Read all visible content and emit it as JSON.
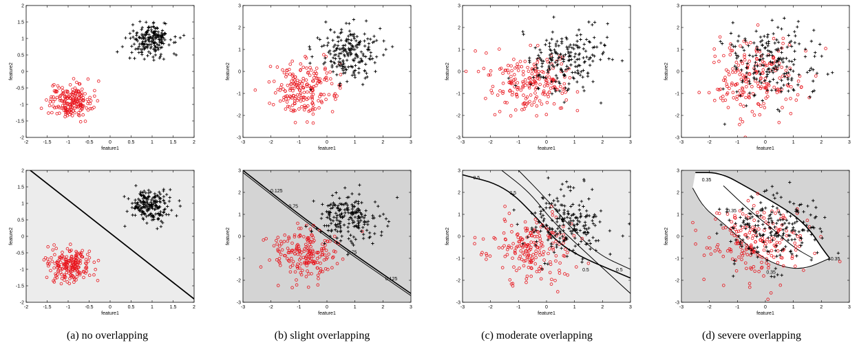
{
  "captions": [
    "(a) no overlapping",
    "(b) slight overlapping",
    "(c) moderate overlapping",
    "(d) severe overlapping"
  ],
  "colors": {
    "class1": "#e8141c",
    "class2": "#000000",
    "bg_light": "#ececec",
    "bg_dark": "#d4d4d4",
    "region_white": "#ffffff"
  },
  "chart_data": [
    {
      "type": "scatter",
      "panel": "a-top",
      "xlabel": "feature1",
      "ylabel": "feature2",
      "xlim": [
        -2,
        2
      ],
      "ylim": [
        -2,
        2
      ],
      "xticks": [
        -2,
        -1.5,
        -1,
        -0.5,
        0,
        0.5,
        1,
        1.5,
        2
      ],
      "yticks": [
        -2,
        -1.5,
        -1,
        -0.5,
        0,
        0.5,
        1,
        1.5,
        2
      ],
      "series": [
        {
          "marker": "circle",
          "color": "#e8141c",
          "n": 200,
          "center": [
            -0.95,
            -0.9
          ],
          "spread": [
            0.25,
            0.25
          ]
        },
        {
          "marker": "plus",
          "color": "#000000",
          "n": 200,
          "center": [
            0.95,
            0.95
          ],
          "spread": [
            0.25,
            0.25
          ]
        }
      ]
    },
    {
      "type": "scatter",
      "panel": "b-top",
      "xlabel": "feature1",
      "ylabel": "feature2",
      "xlim": [
        -3,
        3
      ],
      "ylim": [
        -3,
        3
      ],
      "xticks": [
        -3,
        -2,
        -1,
        0,
        1,
        2,
        3
      ],
      "yticks": [
        -3,
        -2,
        -1,
        0,
        1,
        2,
        3
      ],
      "series": [
        {
          "marker": "circle",
          "color": "#e8141c",
          "n": 200,
          "center": [
            -0.8,
            -0.8
          ],
          "spread": [
            0.6,
            0.6
          ]
        },
        {
          "marker": "plus",
          "color": "#000000",
          "n": 200,
          "center": [
            0.8,
            0.8
          ],
          "spread": [
            0.55,
            0.6
          ]
        }
      ]
    },
    {
      "type": "scatter",
      "panel": "c-top",
      "xlabel": "feature1",
      "ylabel": "feature2",
      "xlim": [
        -3,
        3
      ],
      "ylim": [
        -3,
        3
      ],
      "xticks": [
        -3,
        -2,
        -1,
        0,
        1,
        2,
        3
      ],
      "yticks": [
        -3,
        -2,
        -1,
        0,
        1,
        2,
        3
      ],
      "series": [
        {
          "marker": "circle",
          "color": "#e8141c",
          "n": 200,
          "center": [
            -0.6,
            -0.5
          ],
          "spread": [
            0.75,
            0.7
          ]
        },
        {
          "marker": "plus",
          "color": "#000000",
          "n": 200,
          "center": [
            0.6,
            0.5
          ],
          "spread": [
            0.7,
            0.75
          ]
        }
      ]
    },
    {
      "type": "scatter",
      "panel": "d-top",
      "xlabel": "feature1",
      "ylabel": "feature2",
      "xlim": [
        -3,
        3
      ],
      "ylim": [
        -3,
        3
      ],
      "xticks": [
        -3,
        -2,
        -1,
        0,
        1,
        2,
        3
      ],
      "yticks": [
        -3,
        -2,
        -1,
        0,
        1,
        2,
        3
      ],
      "series": [
        {
          "marker": "circle",
          "color": "#e8141c",
          "n": 200,
          "center": [
            -0.4,
            -0.3
          ],
          "spread": [
            0.85,
            0.85
          ]
        },
        {
          "marker": "plus",
          "color": "#000000",
          "n": 200,
          "center": [
            0.35,
            0.3
          ],
          "spread": [
            0.85,
            0.85
          ]
        }
      ]
    },
    {
      "type": "scatter",
      "panel": "a-bottom",
      "xlabel": "feature1",
      "ylabel": "feature2",
      "xlim": [
        -2,
        2
      ],
      "ylim": [
        -2,
        2
      ],
      "xticks": [
        -2,
        -1.5,
        -1,
        -0.5,
        0,
        0.5,
        1,
        1.5,
        2
      ],
      "yticks": [
        -2,
        -1.5,
        -1,
        -0.5,
        0,
        0.5,
        1,
        1.5,
        2
      ],
      "background": "#ececec",
      "boundary": [
        [
          -2,
          2.1
        ],
        [
          2,
          -1.9
        ]
      ],
      "series": [
        {
          "marker": "circle",
          "color": "#e8141c",
          "n": 200,
          "center": [
            -0.95,
            -0.9
          ],
          "spread": [
            0.25,
            0.25
          ]
        },
        {
          "marker": "plus",
          "color": "#000000",
          "n": 200,
          "center": [
            0.95,
            0.95
          ],
          "spread": [
            0.25,
            0.25
          ]
        }
      ]
    },
    {
      "type": "scatter",
      "panel": "b-bottom",
      "xlabel": "feature1",
      "ylabel": "feature2",
      "xlim": [
        -3,
        3
      ],
      "ylim": [
        -3,
        3
      ],
      "xticks": [
        -3,
        -2,
        -1,
        0,
        1,
        2,
        3
      ],
      "yticks": [
        -3,
        -2,
        -1,
        0,
        1,
        2,
        3
      ],
      "background": "#d4d4d4",
      "contours": [
        {
          "level": "0.125",
          "points": [
            [
              -3,
              3.0
            ],
            [
              -0.3,
              0.3
            ],
            [
              3,
              -2.6
            ]
          ],
          "labels": [
            [
              -1.8,
              2.0
            ],
            [
              2.3,
              -2.0
            ]
          ]
        },
        {
          "level": "0.75",
          "points": [
            [
              -3,
              2.9
            ],
            [
              -0.3,
              0.2
            ],
            [
              3,
              -2.7
            ]
          ],
          "labels": [
            [
              -1.2,
              1.3
            ],
            [
              0.9,
              -0.8
            ]
          ]
        }
      ],
      "series": [
        {
          "marker": "circle",
          "color": "#e8141c",
          "n": 200,
          "center": [
            -0.8,
            -0.8
          ],
          "spread": [
            0.6,
            0.6
          ]
        },
        {
          "marker": "plus",
          "color": "#000000",
          "n": 200,
          "center": [
            0.8,
            0.8
          ],
          "spread": [
            0.55,
            0.6
          ]
        }
      ]
    },
    {
      "type": "scatter",
      "panel": "c-bottom",
      "xlabel": "feature1",
      "ylabel": "feature2",
      "xlim": [
        -3,
        3
      ],
      "ylim": [
        -3,
        3
      ],
      "xticks": [
        -3,
        -2,
        -1,
        0,
        1,
        2,
        3
      ],
      "yticks": [
        -3,
        -2,
        -1,
        0,
        1,
        2,
        3
      ],
      "background": "#ececec",
      "contours": [
        {
          "level": "0.5",
          "points": [
            [
              -3,
              2.8
            ],
            [
              -1.5,
              2.3
            ],
            [
              -0.3,
              0.8
            ],
            [
              0.6,
              -0.6
            ],
            [
              3,
              -1.9
            ]
          ],
          "labels": [
            [
              -2.5,
              2.6
            ],
            [
              2.6,
              -1.6
            ]
          ]
        },
        {
          "level": "0.5",
          "points": [
            [
              -1.6,
              3.0
            ],
            [
              -0.6,
              2.0
            ],
            [
              0.2,
              0.7
            ],
            [
              1.2,
              -0.5
            ],
            [
              3,
              -2.6
            ]
          ],
          "labels": [
            [
              -1.2,
              1.9
            ],
            [
              1.4,
              -1.6
            ]
          ]
        },
        {
          "level": "",
          "points": [
            [
              -1.0,
              3.0
            ],
            [
              0.0,
              1.7
            ],
            [
              0.8,
              0.5
            ],
            [
              1.8,
              -0.8
            ],
            [
              3,
              -1.5
            ]
          ],
          "labels": []
        }
      ],
      "series": [
        {
          "marker": "circle",
          "color": "#e8141c",
          "n": 200,
          "center": [
            -0.6,
            -0.5
          ],
          "spread": [
            0.75,
            0.7
          ]
        },
        {
          "marker": "plus",
          "color": "#000000",
          "n": 200,
          "center": [
            0.6,
            0.5
          ],
          "spread": [
            0.7,
            0.75
          ]
        }
      ]
    },
    {
      "type": "scatter",
      "panel": "d-bottom",
      "xlabel": "feature1",
      "ylabel": "feature2",
      "xlim": [
        -3,
        3
      ],
      "ylim": [
        -3,
        3
      ],
      "xticks": [
        -3,
        -2,
        -1,
        0,
        1,
        2,
        3
      ],
      "yticks": [
        -3,
        -2,
        -1,
        0,
        1,
        2,
        3
      ],
      "background": "#d4d4d4",
      "region": [
        [
          -2.5,
          2.9
        ],
        [
          -1.6,
          2.9
        ],
        [
          -0.6,
          2.2
        ],
        [
          0.5,
          1.4
        ],
        [
          1.2,
          0.8
        ],
        [
          1.7,
          0.1
        ],
        [
          2.0,
          -0.5
        ],
        [
          2.3,
          -1.0
        ],
        [
          1.4,
          -1.5
        ],
        [
          0.6,
          -1.4
        ],
        [
          -0.2,
          -0.9
        ],
        [
          -0.9,
          -0.1
        ],
        [
          -1.6,
          0.7
        ],
        [
          -2.2,
          1.3
        ],
        [
          -2.6,
          2.2
        ]
      ],
      "contours": [
        {
          "level": "0.35",
          "points": [
            [
              -2.5,
              2.9
            ],
            [
              -1.6,
              2.9
            ],
            [
              -0.6,
              2.2
            ],
            [
              0.5,
              1.4
            ],
            [
              1.2,
              0.8
            ],
            [
              1.7,
              0.1
            ],
            [
              2.0,
              -0.5
            ],
            [
              2.3,
              -1.0
            ]
          ],
          "labels": [
            [
              -2.1,
              2.5
            ],
            [
              2.5,
              -1.1
            ]
          ]
        },
        {
          "level": "0.35",
          "points": [
            [
              -2.6,
              2.2
            ],
            [
              -2.2,
              1.3
            ],
            [
              -1.6,
              0.7
            ],
            [
              -0.9,
              -0.1
            ],
            [
              -0.2,
              -0.9
            ],
            [
              0.6,
              -1.4
            ],
            [
              1.4,
              -1.5
            ],
            [
              2.3,
              -1.0
            ]
          ],
          "labels": [
            [
              -1.2,
              1.1
            ],
            [
              0.2,
              -1.7
            ]
          ]
        },
        {
          "level": "",
          "points": [
            [
              -1.5,
              2.3
            ],
            [
              -0.5,
              1.1
            ],
            [
              0.3,
              0.3
            ],
            [
              1.0,
              -0.5
            ],
            [
              1.7,
              -1.0
            ]
          ],
          "labels": []
        }
      ],
      "series": [
        {
          "marker": "circle",
          "color": "#e8141c",
          "n": 200,
          "center": [
            -0.4,
            -0.3
          ],
          "spread": [
            0.85,
            0.85
          ]
        },
        {
          "marker": "plus",
          "color": "#000000",
          "n": 200,
          "center": [
            0.35,
            0.3
          ],
          "spread": [
            0.85,
            0.85
          ]
        }
      ]
    }
  ]
}
